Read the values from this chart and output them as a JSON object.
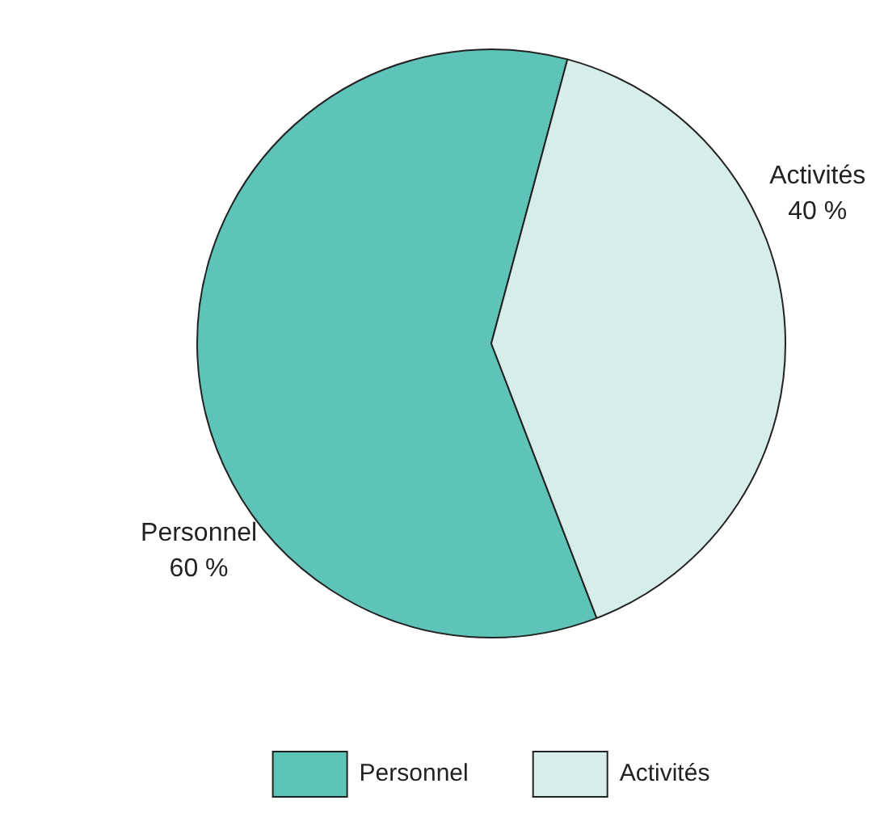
{
  "chart_data": {
    "type": "pie",
    "categories": [
      "Personnel",
      "Activités"
    ],
    "values": [
      60,
      40
    ],
    "colors": [
      "#5fc4b8",
      "#d6ede9"
    ],
    "value_labels": [
      "60 %",
      "40 %"
    ],
    "legend": "bottom"
  }
}
